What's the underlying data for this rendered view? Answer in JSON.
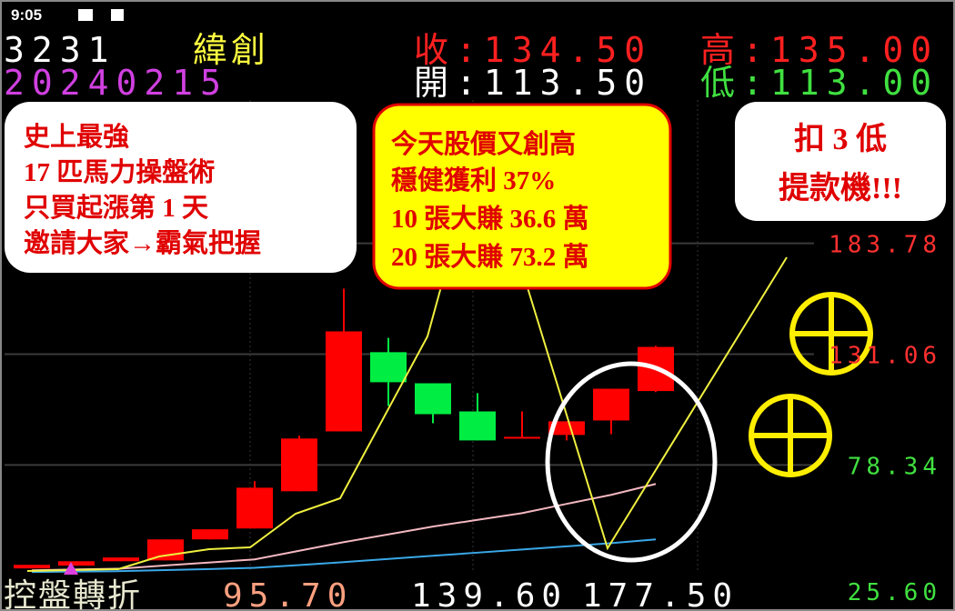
{
  "status_bar": {
    "time": "9:05"
  },
  "header": {
    "code": "3231",
    "name": "緯創",
    "close": "收:134.50",
    "high": "高:135.00",
    "date": "20240215",
    "open": "開:113.50",
    "low": "低:113.00"
  },
  "callouts": [
    {
      "lines": [
        "史上最強",
        "17 匹馬力操盤術",
        "只買起漲第 1 天",
        "邀請大家→霸氣把握"
      ]
    },
    {
      "lines": [
        "今天股價又創高",
        "穩健獲利 37%",
        "10 張大賺 36.6 萬",
        "20 張大賺 73.2 萬"
      ]
    },
    {
      "lines": [
        "扣 3 低",
        "提款機!!!"
      ]
    }
  ],
  "footer": {
    "label": "控盤轉折",
    "values": [
      "95.70",
      "139.60",
      "177.50"
    ],
    "right_value": "25.60"
  },
  "chart_data": {
    "type": "candlestick",
    "open": [
      29.1,
      30.4,
      32.5,
      32.9,
      42.9,
      48.1,
      65.8,
      94.3,
      132.0,
      117.2,
      103.8,
      90.9,
      92.6,
      99.5,
      113.5
    ],
    "high": [
      30.8,
      32.5,
      34.3,
      42.9,
      47.7,
      70.6,
      92.2,
      162.2,
      138.8,
      117.2,
      112.5,
      103.8,
      99.1,
      114.6,
      135.0
    ],
    "low": [
      29.1,
      30.4,
      32.5,
      32.9,
      42.9,
      48.1,
      65.8,
      94.3,
      106.4,
      98.2,
      90.0,
      90.9,
      90.0,
      93.0,
      113.0
    ],
    "close": [
      30.8,
      32.5,
      34.3,
      42.9,
      47.7,
      67.5,
      90.9,
      141.9,
      117.7,
      102.5,
      90.0,
      91.7,
      99.1,
      114.6,
      134.5
    ],
    "up_color": "#ff0000",
    "down_color": "#00ee44",
    "lines": [
      {
        "color": "#f4b8c0",
        "values": [
          28.2,
          28.6,
          29.0,
          30.5,
          31.9,
          33.4,
          37.5,
          41.6,
          45.3,
          49.0,
          52.2,
          55.4,
          59.8,
          64.1,
          69.3
        ]
      },
      {
        "color": "#3aa8e8",
        "values": [
          27.4,
          27.6,
          27.8,
          28.3,
          28.8,
          29.4,
          30.7,
          32.1,
          33.6,
          35.1,
          36.6,
          38.1,
          39.6,
          41.1,
          42.9
        ]
      }
    ],
    "ylim": [
      27,
      252
    ],
    "yticks": [
      183.78,
      131.06,
      78.34
    ],
    "tick_colors": [
      "#ff3030",
      "#ff3030",
      "#40e040"
    ],
    "grid": true
  }
}
